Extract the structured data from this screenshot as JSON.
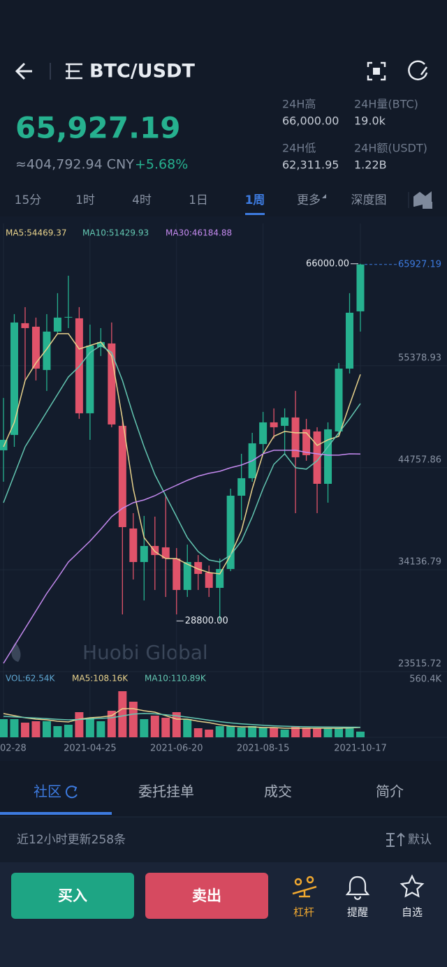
{
  "header": {
    "pair": "BTC/USDT",
    "price": "65,927.19",
    "cny": "≈404,792.94 CNY",
    "change": "+5.68%",
    "stats": [
      {
        "label": "24H高",
        "value": "66,000.00"
      },
      {
        "label": "24H量(BTC)",
        "value": "19.0k"
      },
      {
        "label": "24H低",
        "value": "62,311.95"
      },
      {
        "label": "24H额(USDT)",
        "value": "1.22B"
      }
    ]
  },
  "intervals": [
    "15分",
    "1时",
    "4时",
    "1日",
    "1周",
    "更多",
    "深度图"
  ],
  "active_interval": 4,
  "chart_data": {
    "type": "candlestick",
    "categories": [
      "02-28",
      null,
      null,
      null,
      null,
      null,
      null,
      null,
      "2021-04-25",
      null,
      null,
      null,
      null,
      null,
      null,
      null,
      "2021-06-20",
      null,
      null,
      null,
      null,
      null,
      null,
      null,
      "2021-08-15",
      null,
      null,
      null,
      null,
      null,
      null,
      null,
      null,
      "2021-10-17"
    ],
    "open": [
      46571,
      48171,
      59807,
      59443,
      54935,
      58935,
      60390,
      60317,
      50426,
      57335,
      57698,
      49117,
      38426,
      34935,
      36607,
      36462,
      35298,
      32025,
      34935,
      33843,
      32244,
      34207,
      41843,
      43662,
      47225,
      49480,
      49117,
      49989,
      48753,
      48535,
      43080,
      48535,
      55080,
      61044
    ],
    "high": [
      52025,
      60753,
      61480,
      60390,
      60753,
      62936,
      64753,
      61480,
      59662,
      59298,
      59880,
      49989,
      40026,
      39735,
      39662,
      41843,
      36389,
      36753,
      35662,
      34571,
      35298,
      42571,
      46207,
      48389,
      50571,
      50935,
      50935,
      52753,
      49844,
      48971,
      49480,
      55662,
      62936,
      66000
    ],
    "low": [
      43298,
      46935,
      53844,
      53844,
      52753,
      58717,
      59298,
      49844,
      47662,
      56389,
      48971,
      29480,
      33117,
      30934,
      32025,
      31298,
      29480,
      31298,
      32025,
      31298,
      28800,
      33989,
      39298,
      43298,
      46207,
      47807,
      46207,
      40026,
      45480,
      40026,
      41116,
      48026,
      54571,
      58935
    ],
    "close": [
      47662,
      59880,
      59298,
      55080,
      58935,
      60390,
      60462,
      50426,
      57480,
      57844,
      49262,
      38571,
      34935,
      36607,
      35662,
      35298,
      32025,
      34935,
      33698,
      32244,
      34207,
      41843,
      43662,
      47298,
      49480,
      48971,
      49989,
      45844,
      46062,
      43080,
      48753,
      55080,
      60899,
      65927.19
    ],
    "up_color": "#26b18f",
    "down_color": "#e0536a",
    "ylim": [
      23515.72,
      70200
    ],
    "yticks": [
      23515.72,
      34136.79,
      44757.86,
      55378.93
    ],
    "grid": true,
    "high_marker": {
      "value": 66000,
      "label": "66000.00"
    },
    "low_marker": {
      "value": 28800,
      "label": "28800.00"
    },
    "last_price": {
      "value": 65927.19,
      "label": "65927.19",
      "color": "#3d7be0"
    },
    "series": [
      {
        "name": "MA5:54469.37",
        "color": "#e9d38c",
        "values": [
          46935,
          49480,
          53844,
          55662,
          57117,
          58717,
          58717,
          57117,
          57480,
          57844,
          56389,
          49844,
          42571,
          37480,
          36026,
          35298,
          35298,
          34716,
          34207,
          33843,
          33698,
          35662,
          38207,
          42571,
          46207,
          48026,
          48535,
          48389,
          48389,
          47080,
          47662,
          48026,
          51298,
          54469.37
        ]
      },
      {
        "name": "MA10:51429.93",
        "color": "#63c7b2",
        "values": [
          41116,
          44026,
          46935,
          48753,
          50571,
          52389,
          54207,
          55298,
          56753,
          57480,
          56753,
          53844,
          50207,
          46935,
          44026,
          41843,
          39662,
          37480,
          36026,
          35153,
          34935,
          35662,
          37116,
          39662,
          42571,
          45116,
          46207,
          44753,
          44607,
          45480,
          46935,
          48389,
          49844,
          51429.93
        ]
      },
      {
        "name": "MA30:46184.88",
        "color": "#c58af0",
        "values": [
          24388,
          26207,
          28025,
          29843,
          31661,
          33261,
          34935,
          36026,
          37116,
          38352,
          39662,
          40534,
          41116,
          41407,
          41843,
          42425,
          42934,
          43443,
          43880,
          44171,
          44389,
          44753,
          45043,
          45480,
          46207,
          46571,
          46571,
          46571,
          46353,
          46207,
          46062,
          46062,
          46207,
          46184.88
        ]
      }
    ],
    "volume": {
      "name": "VOL:62.54K",
      "color": "#5fa8d3",
      "values": [
        199600,
        199600,
        161200,
        176600,
        176600,
        122800,
        138200,
        276400,
        215000,
        176600,
        291700,
        506700,
        391500,
        199600,
        238000,
        215000,
        276400,
        199600,
        99800,
        84400,
        122800,
        122800,
        107500,
        122800,
        107500,
        107500,
        84400,
        122800,
        107500,
        99800,
        99800,
        99800,
        99800,
        62540
      ],
      "ylim": [
        0,
        560400
      ],
      "yticks": [
        {
          "value": 560400,
          "label": "560.4K"
        }
      ],
      "series": [
        {
          "name": "MA5:108.16K",
          "color": "#e9d38c",
          "values": [
            261000,
            238000,
            215000,
            199600,
            191900,
            176600,
            168900,
            199600,
            215000,
            222600,
            238000,
            314800,
            314800,
            291700,
            276400,
            238000,
            199600,
            199600,
            176600,
            161200,
            138200,
            122800,
            115200,
            115200,
            107500,
            107500,
            99800,
            99800,
            99800,
            99800,
            99800,
            99800,
            104000,
            108160
          ]
        },
        {
          "name": "MA10:110.89K",
          "color": "#63c7b2",
          "values": [
            230000,
            225000,
            218000,
            212000,
            205000,
            198000,
            192000,
            196000,
            202000,
            208000,
            215000,
            235000,
            255000,
            262000,
            258000,
            248000,
            236000,
            222000,
            205000,
            188000,
            172000,
            158000,
            148000,
            140000,
            132000,
            126000,
            122000,
            118000,
            116000,
            114000,
            113000,
            112000,
            111500,
            110890
          ]
        }
      ]
    }
  },
  "watermark": "Huobi Global",
  "tabs": [
    "社区",
    "委托挂单",
    "成交",
    "简介"
  ],
  "active_tab": 0,
  "feed": {
    "summary": "近12小时更新258条",
    "sort": "默认"
  },
  "actions": {
    "buy": "买入",
    "sell": "卖出",
    "nav": [
      "杠杆",
      "提醒",
      "自选"
    ]
  }
}
